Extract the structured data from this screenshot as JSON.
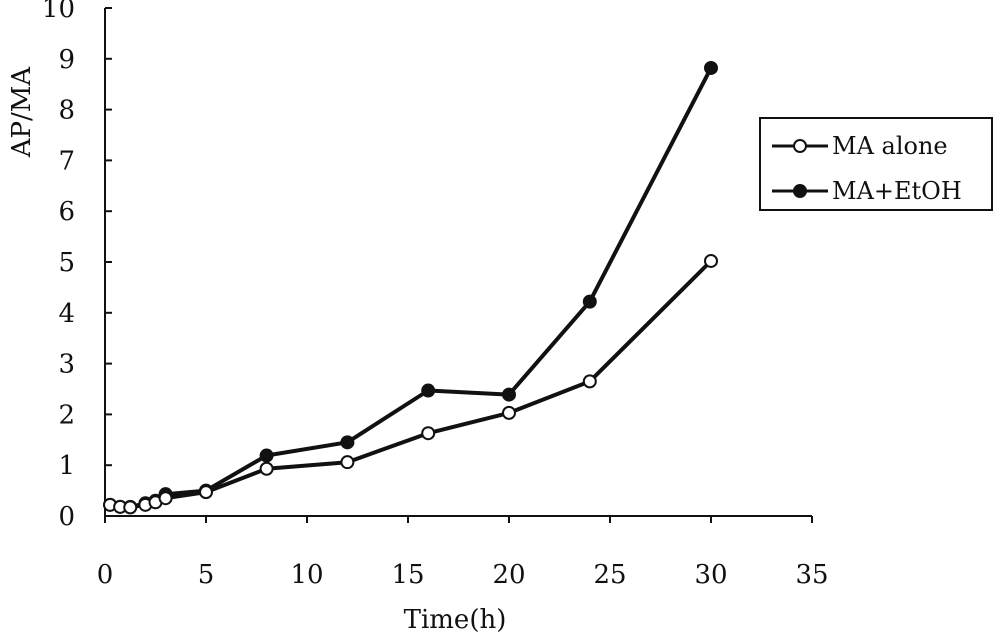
{
  "chart_data": {
    "type": "line",
    "xlabel": "Time(h)",
    "ylabel": "AP/MA",
    "xlim": [
      0,
      35
    ],
    "ylim": [
      0,
      10
    ],
    "x_ticks": [
      "0",
      "5",
      "10",
      "15",
      "20",
      "25",
      "30",
      "35"
    ],
    "y_ticks": [
      "0",
      "1",
      "2",
      "3",
      "4",
      "5",
      "6",
      "7",
      "8",
      "9",
      "10"
    ],
    "grid": false,
    "legend_position": "right",
    "series": [
      {
        "name": "MA alone",
        "marker": "open-circle",
        "color": "#111111",
        "points": [
          [
            0.25,
            0.22
          ],
          [
            0.75,
            0.18
          ],
          [
            1.25,
            0.17
          ],
          [
            2,
            0.22
          ],
          [
            2.5,
            0.27
          ],
          [
            3,
            0.35
          ],
          [
            5,
            0.47
          ],
          [
            8,
            0.93
          ],
          [
            12,
            1.06
          ],
          [
            16,
            1.63
          ],
          [
            20,
            2.03
          ],
          [
            24,
            2.65
          ],
          [
            30,
            5.02
          ]
        ]
      },
      {
        "name": "MA+EtOH",
        "marker": "filled-circle",
        "color": "#111111",
        "points": [
          [
            0.25,
            0.22
          ],
          [
            0.75,
            0.18
          ],
          [
            1.25,
            0.18
          ],
          [
            2,
            0.25
          ],
          [
            2.5,
            0.3
          ],
          [
            3,
            0.43
          ],
          [
            5,
            0.5
          ],
          [
            8,
            1.19
          ],
          [
            12,
            1.45
          ],
          [
            16,
            2.47
          ],
          [
            20,
            2.39
          ],
          [
            24,
            4.22
          ],
          [
            30,
            8.82
          ]
        ]
      }
    ]
  }
}
